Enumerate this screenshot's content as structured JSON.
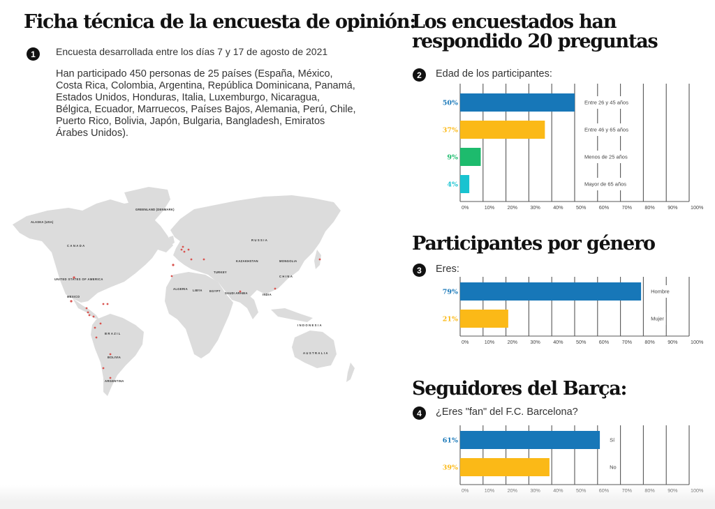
{
  "left": {
    "title": "Ficha técnica de la encuesta de opinión:",
    "badge": "1",
    "date_text": "Encuesta desarrollada entre los días 7 y 17 de agosto de 2021",
    "participants_text": "Han participado 450 personas de 25 países (España, México, Costa Rica, Colombia, Argentina, República Dominicana, Panamá, Estados Unidos, Honduras, Italia, Luxemburgo, Nicaragua, Bélgica, Ecuador, Marruecos, Países Bajos, Alemania, Perú, Chile, Puerto Rico, Bolivia, Japón, Bulgaria, Bangladesh, Emiratos Árabes Unidos).",
    "map": {
      "labels": [
        "CANADA",
        "UNITED STATES OF AMERICA",
        "GREENLAND (DENMARK)",
        "ALASKA (USA)",
        "MEXICO",
        "BRAZIL",
        "RUSSIA",
        "KAZAKHSTAN",
        "MONGOLIA",
        "CHINA",
        "INDIA",
        "ALGERIA",
        "LIBYA",
        "EGYPT",
        "INDONESIA",
        "AUSTRALIA",
        "ARGENTINA",
        "BOLIVIA",
        "TURKEY",
        "SAUDI ARABIA"
      ],
      "colors": {
        "land": "#dcdcdc",
        "marker": "#d9534f"
      }
    }
  },
  "right": {
    "title": "Los encuestados han respondido 20 preguntas",
    "gender_title": "Participantes por género",
    "barca_title": "Seguidores del Barça:"
  },
  "questions": [
    {
      "badge": "2",
      "text": "Edad de los participantes:"
    },
    {
      "badge": "3",
      "text": "Eres:"
    },
    {
      "badge": "4",
      "text": "¿Eres \"fan\" del F.C. Barcelona?"
    }
  ],
  "colors": {
    "blue": "#1777b8",
    "yellow": "#fbb917",
    "green": "#1dbb6d",
    "cyan": "#19c3d0",
    "grid": "#555555"
  },
  "chart_data": [
    {
      "type": "bar",
      "orientation": "horizontal",
      "title": "Edad de los participantes:",
      "categories": [
        "Entre 26 y 45 años",
        "Entre 46 y 65 años",
        "Menos de 25 años",
        "Mayor de 65 años"
      ],
      "values": [
        50,
        37,
        9,
        4
      ],
      "value_labels": [
        "50%",
        "37%",
        "9%",
        "4%"
      ],
      "colors": [
        "#1777b8",
        "#fbb917",
        "#1dbb6d",
        "#19c3d0"
      ],
      "xlim": [
        0,
        100
      ],
      "xticks": [
        "0%",
        "10%",
        "20%",
        "30%",
        "40%",
        "50%",
        "60%",
        "70%",
        "80%",
        "90%",
        "100%"
      ],
      "grid": true
    },
    {
      "type": "bar",
      "orientation": "horizontal",
      "title": "Eres:",
      "categories": [
        "Hombre",
        "Mujer"
      ],
      "values": [
        79,
        21
      ],
      "value_labels": [
        "79%",
        "21%"
      ],
      "colors": [
        "#1777b8",
        "#fbb917"
      ],
      "xlim": [
        0,
        100
      ],
      "xticks": [
        "0%",
        "10%",
        "20%",
        "30%",
        "40%",
        "50%",
        "60%",
        "70%",
        "80%",
        "90%",
        "100%"
      ],
      "grid": true
    },
    {
      "type": "bar",
      "orientation": "horizontal",
      "title": "¿Eres \"fan\" del F.C. Barcelona?",
      "categories": [
        "Sí",
        "No"
      ],
      "values": [
        61,
        39
      ],
      "value_labels": [
        "61%",
        "39%"
      ],
      "colors": [
        "#1777b8",
        "#fbb917"
      ],
      "xlim": [
        0,
        100
      ],
      "xticks": [
        "0%",
        "10%",
        "20%",
        "30%",
        "40%",
        "50%",
        "60%",
        "70%",
        "80%",
        "90%",
        "100%"
      ],
      "grid": true
    }
  ]
}
